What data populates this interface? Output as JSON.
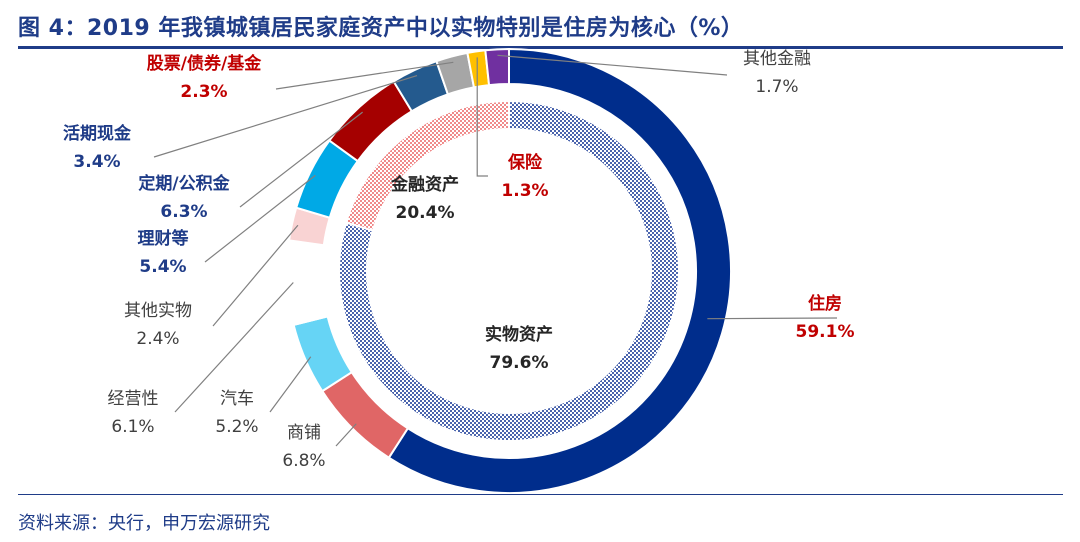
{
  "title": "图 4：2019 年我镇城镇居民家庭资产中以实物特别是住房为核心（%）",
  "source": "资料来源：央行，申万宏源研究",
  "colors": {
    "title_blue": "#1f3c88",
    "label_red": "#c00000",
    "label_gray": "#404040"
  },
  "chart_data": {
    "type": "pie",
    "variant": "donut-nested",
    "inner_ring": [
      {
        "name": "实物资产",
        "value": 79.6,
        "color": "#8497c8",
        "pattern": "checker-blue",
        "label_value": "79.6%"
      },
      {
        "name": "金融资产",
        "value": 20.4,
        "color": "#f4a7a7",
        "pattern": "checker-pink",
        "label_value": "20.4%"
      }
    ],
    "outer_ring": [
      {
        "name": "住房",
        "value": 59.1,
        "color": "#002d8c",
        "label_color": "red",
        "label_value": "59.1%"
      },
      {
        "name": "商铺",
        "value": 6.8,
        "color": "#e06666",
        "label_color": "gray",
        "label_value": "6.8%"
      },
      {
        "name": "汽车",
        "value": 5.2,
        "color": "#66d4f5",
        "label_color": "gray",
        "label_value": "5.2%"
      },
      {
        "name": "经营性",
        "value": 6.1,
        "color": "#ffffff",
        "label_color": "gray",
        "label_value": "6.1%"
      },
      {
        "name": "其他实物",
        "value": 2.4,
        "color": "#f9d3d3",
        "label_color": "gray",
        "label_value": "2.4%"
      },
      {
        "name": "理财等",
        "value": 5.4,
        "color": "#00a9e6",
        "label_color": "blue",
        "label_value": "5.4%"
      },
      {
        "name": "定期/公积金",
        "value": 6.3,
        "color": "#a50000",
        "label_color": "blue",
        "label_value": "6.3%"
      },
      {
        "name": "活期现金",
        "value": 3.4,
        "color": "#245a8e",
        "label_color": "blue",
        "label_value": "3.4%"
      },
      {
        "name": "股票/债券/基金",
        "value": 2.3,
        "color": "#a6a6a6",
        "label_color": "red",
        "label_value": "2.3%"
      },
      {
        "name": "保险",
        "value": 1.3,
        "color": "#ffc000",
        "label_color": "red",
        "label_value": "1.3%"
      },
      {
        "name": "其他金融",
        "value": 1.7,
        "color": "#7030a0",
        "label_color": "gray",
        "label_value": "1.7%"
      }
    ]
  }
}
